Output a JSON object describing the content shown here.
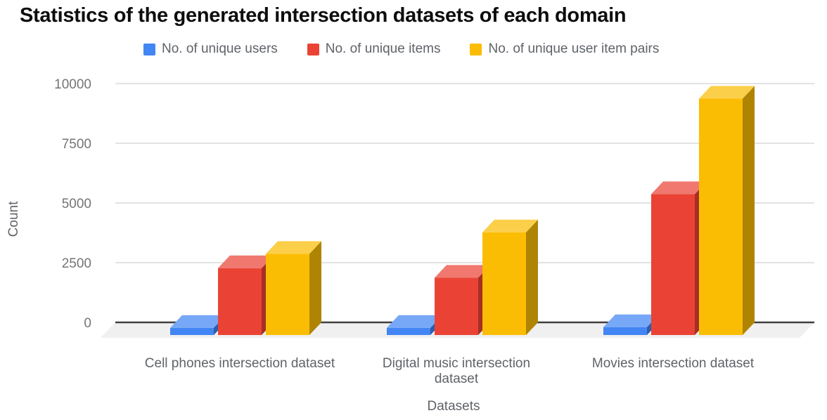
{
  "chart_data": {
    "type": "bar",
    "style": "3d-column-grouped",
    "title": "Statistics of the generated intersection datasets of each domain",
    "xlabel": "Datasets",
    "ylabel": "Count",
    "ylim": [
      0,
      10000
    ],
    "yticks": [
      0,
      2500,
      5000,
      7500,
      10000
    ],
    "grid": true,
    "legend_position": "top",
    "categories": [
      "Cell phones intersection dataset",
      "Digital music intersection dataset",
      "Movies intersection dataset"
    ],
    "series": [
      {
        "name": "No. of unique users",
        "color": "#4285f4",
        "values": [
          300,
          300,
          330
        ]
      },
      {
        "name": "No. of unique items",
        "color": "#ea4335",
        "values": [
          2800,
          2400,
          5900
        ]
      },
      {
        "name": "No. of unique user item pairs",
        "color": "#fbbc04",
        "values": [
          3400,
          4300,
          9900
        ]
      }
    ]
  },
  "colors": {
    "axis_line": "#3f3f3f",
    "gridline": "#e3e3e3",
    "floor": "#f0f0f0",
    "tick_text": "#757575",
    "label_text": "#5f6368",
    "title_text": "#0d0d0d"
  }
}
